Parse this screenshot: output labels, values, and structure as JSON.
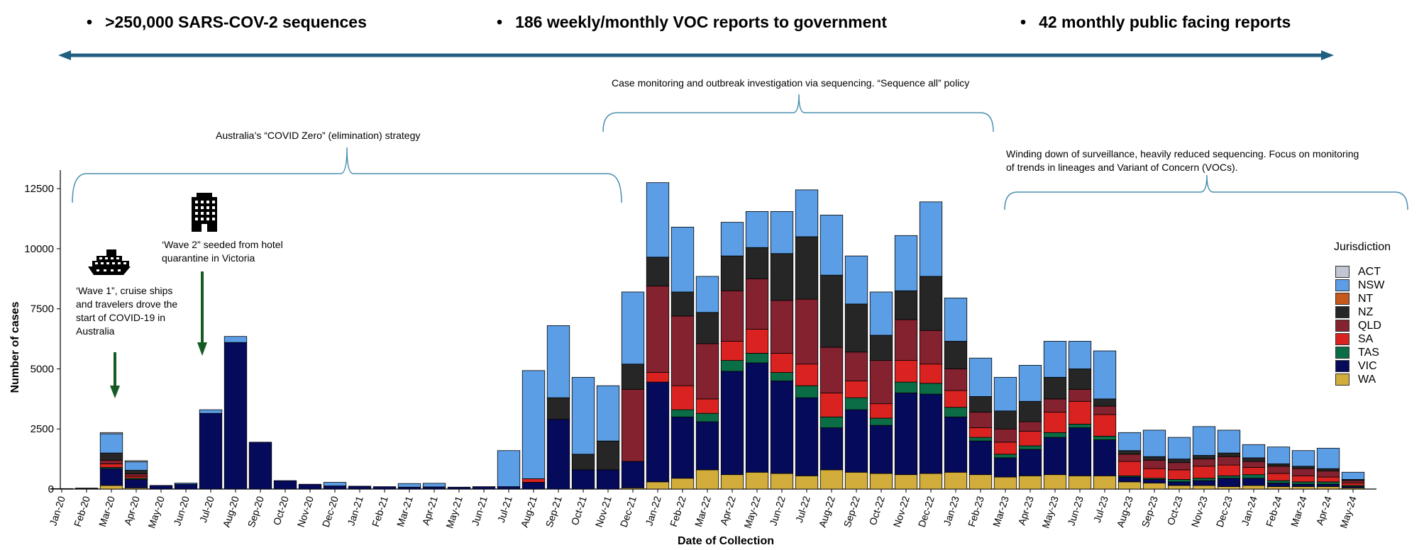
{
  "highlights": [
    {
      "bullet": "•",
      "text": ">250,000 SARS-COV-2 sequences"
    },
    {
      "bullet": "•",
      "text": "186 weekly/monthly VOC reports to government"
    },
    {
      "bullet": "•",
      "text": "42  monthly public facing reports"
    }
  ],
  "braces": [
    {
      "label": "Australia’s  “COVID Zero” (elimination) strategy"
    },
    {
      "label": "Case monitoring and outbreak investigation via sequencing.  “Sequence all” policy"
    },
    {
      "label_line1": "Winding down of surveillance, heavily reduced sequencing. Focus on monitoring",
      "label_line2": "of trends in lineages and Variant of Concern (VOCs)."
    }
  ],
  "annotations": {
    "wave1": [
      "‘Wave 1”, cruise ships",
      "and travelers drove the",
      "start of COVID-19 in",
      "Australia"
    ],
    "wave2": [
      "‘Wave 2” seeded from hotel",
      "quarantine in Victoria"
    ],
    "icons": {
      "wave1": "cruise-ship-icon",
      "wave2": "hotel-building-icon"
    }
  },
  "colors": {
    "ACT": "#c0c6d2",
    "NSW": "#5b9ee6",
    "NT": "#c7581c",
    "NZ": "#262626",
    "QLD": "#84222f",
    "SA": "#da2320",
    "TAS": "#0b6d46",
    "VIC": "#060a5a",
    "WA": "#d2ad3c",
    "timeline": "#205f80",
    "brace": "#4a8fb0",
    "arrow": "#155a22"
  },
  "chart_data": {
    "type": "bar",
    "stacked": true,
    "xlabel": "Date of Collection",
    "ylabel": "Number of cases",
    "ylim": [
      0,
      13000
    ],
    "yticks": [
      0,
      2500,
      5000,
      7500,
      10000,
      12500
    ],
    "legend_title": "Jurisdiction",
    "legend_placement": "right",
    "grid": false,
    "categories": [
      "Jan-20",
      "Feb-20",
      "Mar-20",
      "Apr-20",
      "May-20",
      "Jun-20",
      "Jul-20",
      "Aug-20",
      "Sep-20",
      "Oct-20",
      "Nov-20",
      "Dec-20",
      "Jan-21",
      "Feb-21",
      "Mar-21",
      "Apr-21",
      "May-21",
      "Jun-21",
      "Jul-21",
      "Aug-21",
      "Sep-21",
      "Oct-21",
      "Nov-21",
      "Dec-21",
      "Jan-22",
      "Feb-22",
      "Mar-22",
      "Apr-22",
      "May-22",
      "Jun-22",
      "Jul-22",
      "Aug-22",
      "Sep-22",
      "Oct-22",
      "Nov-22",
      "Dec-22",
      "Jan-23",
      "Feb-23",
      "Mar-23",
      "Apr-23",
      "May-23",
      "Jun-23",
      "Jul-23",
      "Aug-23",
      "Sep-23",
      "Oct-23",
      "Nov-23",
      "Dec-23",
      "Jan-24",
      "Feb-24",
      "Mar-24",
      "Apr-24",
      "May-24"
    ],
    "series": [
      {
        "name": "WA",
        "values": [
          0,
          0,
          150,
          50,
          0,
          0,
          0,
          0,
          0,
          0,
          0,
          0,
          0,
          0,
          0,
          0,
          0,
          0,
          0,
          0,
          0,
          0,
          0,
          50,
          300,
          450,
          800,
          600,
          700,
          650,
          550,
          800,
          700,
          650,
          600,
          650,
          700,
          600,
          500,
          550,
          600,
          550,
          550,
          300,
          250,
          150,
          150,
          100,
          150,
          100,
          100,
          100,
          50
        ]
      },
      {
        "name": "VIC",
        "values": [
          10,
          20,
          700,
          350,
          150,
          200,
          3150,
          6100,
          1950,
          350,
          200,
          130,
          120,
          100,
          80,
          90,
          80,
          100,
          100,
          280,
          2900,
          800,
          800,
          1100,
          4150,
          2550,
          2000,
          4300,
          4550,
          3850,
          3250,
          1750,
          2600,
          2000,
          3400,
          3300,
          2300,
          1400,
          800,
          1100,
          1550,
          2000,
          1500,
          200,
          150,
          150,
          200,
          350,
          300,
          150,
          100,
          100,
          50
        ]
      },
      {
        "name": "TAS",
        "values": [
          0,
          0,
          50,
          50,
          0,
          0,
          0,
          0,
          0,
          0,
          0,
          0,
          0,
          0,
          0,
          0,
          0,
          0,
          0,
          0,
          0,
          0,
          0,
          0,
          0,
          300,
          350,
          450,
          400,
          350,
          500,
          450,
          500,
          300,
          450,
          450,
          400,
          150,
          150,
          150,
          200,
          150,
          150,
          50,
          50,
          100,
          100,
          100,
          150,
          100,
          100,
          100,
          50
        ]
      },
      {
        "name": "SA",
        "values": [
          0,
          0,
          150,
          80,
          0,
          0,
          0,
          0,
          0,
          0,
          0,
          0,
          0,
          0,
          0,
          0,
          0,
          0,
          0,
          150,
          0,
          0,
          0,
          0,
          400,
          1000,
          600,
          800,
          1000,
          800,
          900,
          1000,
          700,
          600,
          900,
          800,
          700,
          400,
          500,
          600,
          850,
          950,
          900,
          600,
          400,
          400,
          500,
          450,
          300,
          300,
          250,
          200,
          100
        ]
      },
      {
        "name": "QLD",
        "values": [
          0,
          0,
          150,
          100,
          0,
          0,
          0,
          0,
          0,
          0,
          0,
          0,
          0,
          0,
          0,
          0,
          0,
          0,
          0,
          0,
          0,
          0,
          0,
          3000,
          3600,
          2900,
          2300,
          2100,
          2100,
          2200,
          2700,
          1900,
          1200,
          1800,
          1700,
          1400,
          900,
          650,
          550,
          400,
          550,
          500,
          350,
          300,
          350,
          300,
          300,
          350,
          250,
          300,
          300,
          250,
          100
        ]
      },
      {
        "name": "NZ",
        "values": [
          0,
          0,
          300,
          150,
          0,
          0,
          0,
          0,
          0,
          0,
          0,
          0,
          0,
          0,
          0,
          0,
          0,
          0,
          0,
          0,
          900,
          650,
          1200,
          1050,
          1200,
          1000,
          1300,
          1450,
          1300,
          1950,
          2600,
          3000,
          2000,
          1050,
          1200,
          2250,
          1150,
          650,
          750,
          850,
          900,
          850,
          300,
          150,
          150,
          150,
          150,
          150,
          150,
          100,
          100,
          100,
          50
        ]
      },
      {
        "name": "NT",
        "values": [
          0,
          0,
          0,
          0,
          0,
          0,
          0,
          0,
          0,
          0,
          0,
          0,
          0,
          0,
          0,
          0,
          0,
          0,
          0,
          0,
          0,
          0,
          0,
          0,
          0,
          0,
          0,
          0,
          0,
          0,
          0,
          0,
          0,
          0,
          0,
          0,
          0,
          0,
          0,
          0,
          0,
          0,
          0,
          0,
          0,
          0,
          0,
          0,
          0,
          0,
          0,
          0,
          0
        ]
      },
      {
        "name": "NSW",
        "values": [
          10,
          20,
          800,
          350,
          0,
          50,
          150,
          250,
          0,
          0,
          0,
          150,
          0,
          0,
          150,
          150,
          0,
          0,
          1500,
          4500,
          3000,
          3200,
          2300,
          3000,
          3100,
          2700,
          1500,
          1400,
          1500,
          1750,
          1950,
          2500,
          2000,
          1800,
          2300,
          3100,
          1800,
          1600,
          1400,
          1500,
          1500,
          1150,
          2000,
          750,
          1100,
          900,
          1200,
          950,
          550,
          700,
          650,
          850,
          300
        ]
      },
      {
        "name": "ACT",
        "values": [
          0,
          0,
          50,
          50,
          0,
          0,
          0,
          0,
          0,
          0,
          0,
          0,
          0,
          0,
          0,
          0,
          0,
          0,
          0,
          0,
          0,
          0,
          0,
          0,
          0,
          0,
          0,
          0,
          0,
          0,
          0,
          0,
          0,
          0,
          0,
          0,
          0,
          0,
          0,
          0,
          0,
          0,
          0,
          0,
          0,
          0,
          0,
          0,
          0,
          0,
          0,
          0,
          0
        ]
      }
    ]
  }
}
